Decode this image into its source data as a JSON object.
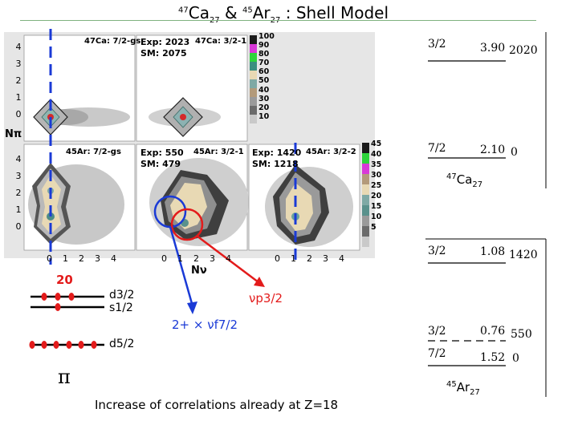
{
  "title": {
    "sup1": "47",
    "main1": "Ca",
    "sub1": "27",
    "amp": " & ",
    "sup2": "45",
    "main2": "Ar",
    "sub2": "27",
    "rest": " : Shell Model"
  },
  "plots": {
    "top_left_label": "47Ca: 7/2-gs",
    "top_mid_exp": "Exp: 2023",
    "top_mid_sm": "SM: 2075",
    "top_mid_label": "47Ca: 3/2-1",
    "bot_left_label": "45Ar: 7/2-gs",
    "bot_mid_exp": "Exp: 550",
    "bot_mid_sm": "SM: 479",
    "bot_mid_label": "45Ar: 3/2-1",
    "bot_right_exp": "Exp: 1420",
    "bot_right_sm": "SM: 1218",
    "bot_right_label": "45Ar: 3/2-2",
    "y_axis_label": "Nπ",
    "x_axis_label": "Nν",
    "y_ticks": [
      "4",
      "3",
      "2",
      "1",
      "0"
    ],
    "x_ticks": [
      "0",
      "1",
      "2",
      "3",
      "4"
    ],
    "legend_top": [
      "100",
      "90",
      "80",
      "70",
      "60",
      "50",
      "40",
      "30",
      "20",
      "10"
    ],
    "legend_bot": [
      "45",
      "40",
      "35",
      "30",
      "25",
      "20",
      "15",
      "10",
      "5"
    ]
  },
  "ca47_levels": [
    {
      "spin": "3/2",
      "energy_mev": "3.90",
      "exp_kev": "2020"
    },
    {
      "spin": "7/2",
      "energy_mev": "2.10",
      "exp_kev": "0"
    }
  ],
  "ca47_label": {
    "sup": "47",
    "main": "Ca",
    "sub": "27"
  },
  "ar45_levels": [
    {
      "spin": "3/2",
      "energy_mev": "1.08",
      "exp_kev": "1420"
    },
    {
      "spin": "3/2",
      "energy_mev": "0.76",
      "exp_kev": "550"
    },
    {
      "spin": "7/2",
      "energy_mev": "1.52",
      "exp_kev": "0"
    }
  ],
  "ar45_label": {
    "sup": "45",
    "main": "Ar",
    "sub": "27"
  },
  "shell": {
    "magic": "20",
    "d32": "d3/2",
    "s12": "s1/2",
    "d52": "d5/2",
    "pi": "π"
  },
  "annotations": {
    "vp32": "νp3/2",
    "coupling": "2+ × νf7/2"
  },
  "footer": "Increase of correlations already at Z=18",
  "colors": {
    "blue": "#1a3ad6",
    "red": "#e31b1b",
    "green_rule": "#7fb27f"
  }
}
